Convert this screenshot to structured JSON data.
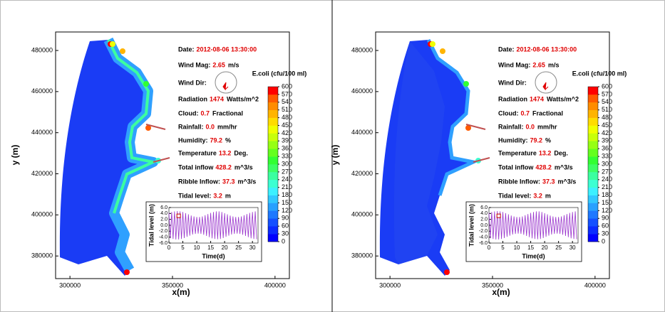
{
  "chart_data": [
    {
      "type": "map",
      "xlabel": "x(m)",
      "ylabel": "y (m)",
      "xlim": [
        293000,
        407000
      ],
      "ylim": [
        369000,
        489000
      ],
      "xticks": [
        300000,
        350000,
        400000
      ],
      "yticks": [
        380000,
        400000,
        420000,
        440000,
        460000,
        480000
      ],
      "annotations": [
        {
          "label": "Date:",
          "value": "2012-08-06 13:30:00"
        },
        {
          "label": "Wind  Mag:",
          "value": "2.65",
          "unit": "m/s"
        },
        {
          "label": "Wind  Dir:"
        },
        {
          "label": "Radiation",
          "value": "1474",
          "unit": "Watts/m^2"
        },
        {
          "label": "Cloud:",
          "value": "0.7",
          "unit": "Fractional"
        },
        {
          "label": "Rainfall:",
          "value": "0.0",
          "unit": "mm/hr"
        },
        {
          "label": "Humidity:",
          "value": "79.2",
          "unit": "%"
        },
        {
          "label": "Temperature",
          "value": "13.2",
          "unit": "Deg."
        },
        {
          "label": "Total inflow",
          "value": "428.2",
          "unit": "m^3/s"
        },
        {
          "label": "Ribble Inflow:",
          "value": "37.3",
          "unit": "m^3/s"
        },
        {
          "label": "Tidal level:",
          "value": "3.2",
          "unit": "m"
        }
      ],
      "colorbar": {
        "title": "E.coli (cfu/100 ml)",
        "lim": [
          0,
          600
        ],
        "ticks": [
          0,
          30,
          60,
          90,
          120,
          150,
          180,
          210,
          240,
          270,
          300,
          330,
          360,
          390,
          420,
          450,
          480,
          510,
          540,
          570,
          600
        ],
        "colors": [
          "#0000ff",
          "#0a2bff",
          "#1450ff",
          "#1e78ff",
          "#28a0ff",
          "#32c8ff",
          "#3cf0ff",
          "#3cffd2",
          "#3cffa0",
          "#3cff64",
          "#32ff32",
          "#64ff1e",
          "#96ff14",
          "#c8ff0a",
          "#f0ff00",
          "#ffdc00",
          "#ffb400",
          "#ff8c00",
          "#ff5a00",
          "#ff0000"
        ]
      },
      "inset": {
        "type": "line",
        "xlabel": "Time(d)",
        "ylabel": "Tidal level (m)",
        "xlim": [
          0,
          32
        ],
        "ylim": [
          -6,
          6
        ],
        "xticks": [
          0,
          5,
          10,
          15,
          20,
          25,
          30
        ],
        "yticks": [
          {
            "value": -6,
            "label": "-6.0"
          },
          {
            "value": -4,
            "label": "-4.0"
          },
          {
            "value": -2,
            "label": "-2.0"
          },
          {
            "value": 0,
            "label": "0.0"
          },
          {
            "value": 2,
            "label": "2.0"
          },
          {
            "value": 4,
            "label": "4.0"
          },
          {
            "value": 6,
            "label": "6.0"
          }
        ],
        "color": "#9933cc",
        "x": [
          0,
          0.5,
          1,
          1.5,
          2,
          2.5,
          3,
          3.5,
          4,
          4.5,
          5,
          5.5,
          6,
          6.5,
          7,
          7.5,
          8,
          8.5,
          9,
          9.5,
          10,
          10.5,
          11,
          11.5,
          12,
          12.5,
          13,
          13.5,
          14,
          14.5,
          15,
          15.5,
          16,
          16.5,
          17,
          17.5,
          18,
          18.5,
          19,
          19.5,
          20,
          20.5,
          21,
          21.5,
          22,
          22.5,
          23,
          23.5,
          24,
          24.5,
          25,
          25.5,
          26,
          26.5,
          27,
          27.5,
          28,
          28.5,
          29,
          29.5,
          30,
          30.5,
          31,
          31.5
        ],
        "values": [
          4.2,
          -4.4,
          4.5,
          -4.6,
          4.7,
          -4.8,
          4.8,
          -4.8,
          4.7,
          -4.6,
          4.5,
          -4.3,
          4.1,
          -3.9,
          3.7,
          -3.5,
          3.3,
          -3.1,
          3.0,
          -2.9,
          2.8,
          -2.8,
          2.8,
          -2.9,
          3.0,
          -3.2,
          3.4,
          -3.6,
          3.8,
          -4.0,
          4.2,
          -4.4,
          4.5,
          -4.6,
          4.7,
          -4.7,
          4.7,
          -4.6,
          4.5,
          -4.3,
          4.1,
          -3.9,
          3.7,
          -3.5,
          3.3,
          -3.1,
          3.0,
          -2.9,
          2.8,
          -2.8,
          2.8,
          -2.9,
          3.0,
          -3.2,
          3.4,
          -3.6,
          3.8,
          -4.0,
          4.2,
          -4.4,
          4.5,
          -4.6,
          4.7,
          -4.7
        ],
        "marker": {
          "x": 3.5,
          "y": 3.2
        }
      }
    },
    {
      "type": "map",
      "xlabel": "x(m)",
      "ylabel": "y (m)",
      "xlim": [
        293000,
        407000
      ],
      "ylim": [
        369000,
        489000
      ],
      "xticks": [
        300000,
        350000,
        400000
      ],
      "yticks": [
        380000,
        400000,
        420000,
        440000,
        460000,
        480000
      ],
      "annotations": [
        {
          "label": "Date:",
          "value": "2012-08-06 13:30:00"
        },
        {
          "label": "Wind  Mag:",
          "value": "2.65",
          "unit": "m/s"
        },
        {
          "label": "Wind  Dir:"
        },
        {
          "label": "Radiation",
          "value": "1474",
          "unit": "Watts/m^2"
        },
        {
          "label": "Cloud:",
          "value": "0.7",
          "unit": "Fractional"
        },
        {
          "label": "Rainfall:",
          "value": "0.0",
          "unit": "mm/hr"
        },
        {
          "label": "Humidity:",
          "value": "79.2",
          "unit": "%"
        },
        {
          "label": "Temperature",
          "value": "13.2",
          "unit": "Deg."
        },
        {
          "label": "Total inflow",
          "value": "428.2",
          "unit": "m^3/s"
        },
        {
          "label": "Ribble Inflow:",
          "value": "37.3",
          "unit": "m^3/s"
        },
        {
          "label": "Tidal level:",
          "value": "3.2",
          "unit": "m"
        }
      ],
      "colorbar": {
        "title": "E.coli (cfu/100 ml)",
        "lim": [
          0,
          600
        ],
        "ticks": [
          0,
          30,
          60,
          90,
          120,
          150,
          180,
          210,
          240,
          270,
          300,
          330,
          360,
          390,
          420,
          450,
          480,
          510,
          540,
          570,
          600
        ],
        "colors": [
          "#0000ff",
          "#0a2bff",
          "#1450ff",
          "#1e78ff",
          "#28a0ff",
          "#32c8ff",
          "#3cf0ff",
          "#3cffd2",
          "#3cffa0",
          "#3cff64",
          "#32ff32",
          "#64ff1e",
          "#96ff14",
          "#c8ff0a",
          "#f0ff00",
          "#ffdc00",
          "#ffb400",
          "#ff8c00",
          "#ff5a00",
          "#ff0000"
        ]
      },
      "inset": {
        "type": "line",
        "xlabel": "Time(d)",
        "ylabel": "Tidal level (m)",
        "xlim": [
          0,
          32
        ],
        "ylim": [
          -6,
          6
        ],
        "xticks": [
          0,
          5,
          10,
          15,
          20,
          25,
          30
        ],
        "yticks": [
          {
            "value": -6,
            "label": "-6.0"
          },
          {
            "value": -4,
            "label": "-4.0"
          },
          {
            "value": -2,
            "label": "-2.0"
          },
          {
            "value": 0,
            "label": "0.0"
          },
          {
            "value": 2,
            "label": "2.0"
          },
          {
            "value": 4,
            "label": "4.0"
          },
          {
            "value": 6,
            "label": "6.0"
          }
        ],
        "color": "#9933cc",
        "x": [
          0,
          0.5,
          1,
          1.5,
          2,
          2.5,
          3,
          3.5,
          4,
          4.5,
          5,
          5.5,
          6,
          6.5,
          7,
          7.5,
          8,
          8.5,
          9,
          9.5,
          10,
          10.5,
          11,
          11.5,
          12,
          12.5,
          13,
          13.5,
          14,
          14.5,
          15,
          15.5,
          16,
          16.5,
          17,
          17.5,
          18,
          18.5,
          19,
          19.5,
          20,
          20.5,
          21,
          21.5,
          22,
          22.5,
          23,
          23.5,
          24,
          24.5,
          25,
          25.5,
          26,
          26.5,
          27,
          27.5,
          28,
          28.5,
          29,
          29.5,
          30,
          30.5,
          31,
          31.5
        ],
        "values": [
          4.2,
          -4.4,
          4.5,
          -4.6,
          4.7,
          -4.8,
          4.8,
          -4.8,
          4.7,
          -4.6,
          4.5,
          -4.3,
          4.1,
          -3.9,
          3.7,
          -3.5,
          3.3,
          -3.1,
          3.0,
          -2.9,
          2.8,
          -2.8,
          2.8,
          -2.9,
          3.0,
          -3.2,
          3.4,
          -3.6,
          3.8,
          -4.0,
          4.2,
          -4.4,
          4.5,
          -4.6,
          4.7,
          -4.7,
          4.7,
          -4.6,
          4.5,
          -4.3,
          4.1,
          -3.9,
          3.7,
          -3.5,
          3.3,
          -3.1,
          3.0,
          -2.9,
          2.8,
          -2.8,
          2.8,
          -2.9,
          3.0,
          -3.2,
          3.4,
          -3.6,
          3.8,
          -4.0,
          4.2,
          -4.4,
          4.5,
          -4.6,
          4.7,
          -4.7
        ],
        "marker": {
          "x": 3.5,
          "y": 3.2
        }
      }
    }
  ]
}
